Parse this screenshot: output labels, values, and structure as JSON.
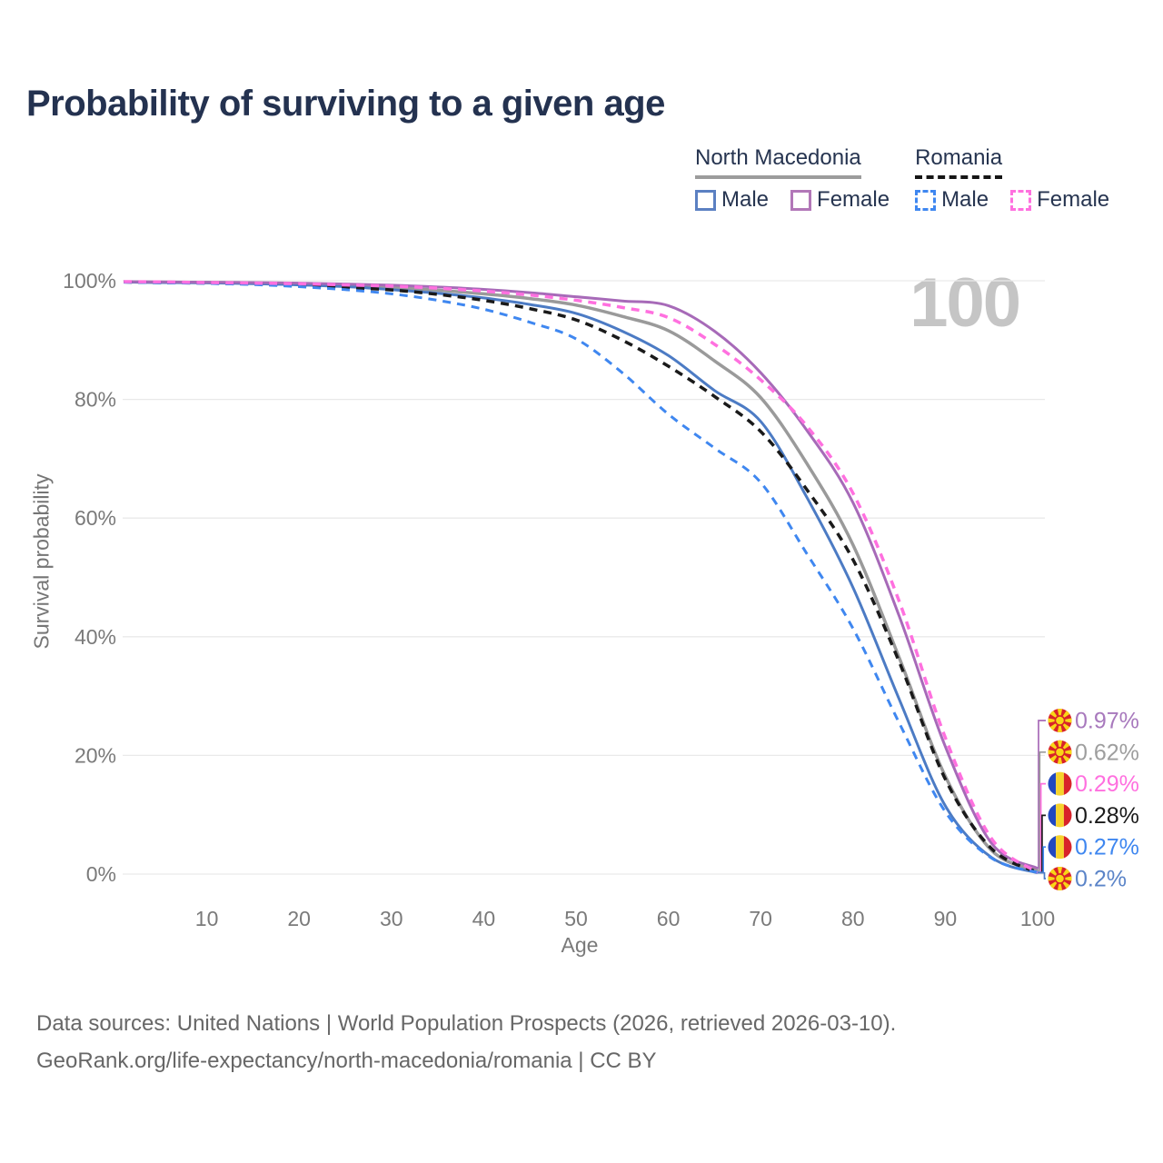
{
  "title": "Probability of surviving to a given age",
  "watermark": "100",
  "legend": {
    "groups": [
      {
        "label": "North Macedonia",
        "underline_style": "solid",
        "underline_color": "#9c9c9c",
        "items": [
          {
            "label": "Male",
            "color": "#5b80c2",
            "dash": false
          },
          {
            "label": "Female",
            "color": "#b277b8",
            "dash": false
          }
        ]
      },
      {
        "label": "Romania",
        "underline_style": "dashed",
        "underline_color": "#151515",
        "items": [
          {
            "label": "Male",
            "color": "#3f87f0",
            "dash": true
          },
          {
            "label": "Female",
            "color": "#ff70df",
            "dash": true
          }
        ]
      }
    ]
  },
  "axes": {
    "y_label": "Survival probability",
    "x_label": "Age",
    "y_ticks": [
      {
        "label": "0%",
        "value": 0
      },
      {
        "label": "20%",
        "value": 20
      },
      {
        "label": "40%",
        "value": 40
      },
      {
        "label": "60%",
        "value": 60
      },
      {
        "label": "80%",
        "value": 80
      },
      {
        "label": "100%",
        "value": 100
      }
    ],
    "x_ticks": [
      {
        "label": "10",
        "value": 10
      },
      {
        "label": "20",
        "value": 20
      },
      {
        "label": "30",
        "value": 30
      },
      {
        "label": "40",
        "value": 40
      },
      {
        "label": "50",
        "value": 50
      },
      {
        "label": "60",
        "value": 60
      },
      {
        "label": "70",
        "value": 70
      },
      {
        "label": "80",
        "value": 80
      },
      {
        "label": "90",
        "value": 90
      },
      {
        "label": "100",
        "value": 100
      }
    ]
  },
  "chart_data": {
    "type": "line",
    "title": "Probability of surviving to a given age",
    "xlabel": "Age",
    "ylabel": "Survival probability",
    "x_range": [
      1,
      100
    ],
    "y_range_percent": [
      0,
      100
    ],
    "grid": "horizontal",
    "ages": [
      1,
      5,
      10,
      15,
      20,
      25,
      30,
      35,
      40,
      45,
      50,
      55,
      60,
      65,
      70,
      75,
      80,
      85,
      90,
      95,
      100
    ],
    "series": [
      {
        "id": "nm_total",
        "name": "North Macedonia",
        "color": "#9a9a9a",
        "dash": false,
        "width": 3.5,
        "values": [
          99.8,
          99.75,
          99.7,
          99.6,
          99.45,
          99.2,
          98.85,
          98.4,
          97.8,
          97.0,
          95.9,
          94.0,
          91.6,
          86.5,
          80.3,
          69.2,
          55.5,
          36.5,
          16.5,
          4.0,
          0.62
        ]
      },
      {
        "id": "nm_male",
        "name": "North Macedonia — Male",
        "color": "#4c7bc4",
        "dash": false,
        "width": 3,
        "values": [
          99.8,
          99.7,
          99.65,
          99.5,
          99.3,
          99.0,
          98.5,
          97.9,
          97.1,
          96.0,
          94.5,
          91.5,
          87.4,
          81.5,
          76.3,
          63.5,
          48.3,
          29.5,
          11.5,
          2.8,
          0.2
        ]
      },
      {
        "id": "nm_female",
        "name": "North Macedonia — Female",
        "color": "#a76ab8",
        "dash": false,
        "width": 3,
        "values": [
          99.85,
          99.8,
          99.75,
          99.7,
          99.6,
          99.45,
          99.25,
          98.95,
          98.55,
          98.0,
          97.3,
          96.6,
          95.8,
          91.5,
          84.5,
          74.8,
          62.6,
          43.5,
          21.5,
          5.2,
          0.97
        ]
      },
      {
        "id": "ro_total",
        "name": "Romania",
        "color": "#1a1a1a",
        "dash": true,
        "width": 3.5,
        "values": [
          99.8,
          99.7,
          99.6,
          99.45,
          99.25,
          98.9,
          98.45,
          97.7,
          96.7,
          95.3,
          93.4,
          90.0,
          85.6,
          80.5,
          74.6,
          64.8,
          53.0,
          35.8,
          16.0,
          4.3,
          0.28
        ]
      },
      {
        "id": "ro_male",
        "name": "Romania — Male",
        "color": "#3f87f0",
        "dash": true,
        "width": 3,
        "values": [
          99.75,
          99.65,
          99.55,
          99.35,
          99.0,
          98.5,
          97.8,
          96.7,
          95.2,
          93.0,
          90.2,
          84.5,
          77.5,
          71.8,
          66.0,
          54.0,
          41.4,
          25.5,
          10.5,
          2.7,
          0.27
        ]
      },
      {
        "id": "ro_female",
        "name": "Romania — Female",
        "color": "#ff70df",
        "dash": true,
        "width": 3.5,
        "values": [
          99.85,
          99.8,
          99.7,
          99.6,
          99.5,
          99.3,
          99.1,
          98.75,
          98.25,
          97.6,
          96.7,
          95.5,
          93.8,
          89.3,
          83.3,
          75.5,
          64.2,
          46.0,
          23.0,
          6.0,
          0.29
        ]
      }
    ],
    "end_labels": [
      {
        "series": "nm_female",
        "text": "0.97%",
        "color": "#a879bd",
        "flag": "north-macedonia"
      },
      {
        "series": "nm_total",
        "text": "0.62%",
        "color": "#9e9e9e",
        "flag": "north-macedonia"
      },
      {
        "series": "ro_female",
        "text": "0.29%",
        "color": "#ff70df",
        "flag": "romania"
      },
      {
        "series": "ro_total",
        "text": "0.28%",
        "color": "#1a1a1a",
        "flag": "romania"
      },
      {
        "series": "ro_male",
        "text": "0.27%",
        "color": "#3f87f0",
        "flag": "romania"
      },
      {
        "series": "nm_male",
        "text": "0.2%",
        "color": "#5b84c8",
        "flag": "north-macedonia"
      }
    ]
  },
  "footer": {
    "line1": "Data sources: United Nations | World Population Prospects (2026, retrieved 2026-03-10).",
    "line2": "GeoRank.org/life-expectancy/north-macedonia/romania | CC BY"
  },
  "flag_colors": {
    "mk_red": "#d8232a",
    "mk_yellow": "#f9d616",
    "ro_blue": "#2148c0",
    "ro_yellow": "#f6d32d",
    "ro_red": "#d8232a"
  }
}
